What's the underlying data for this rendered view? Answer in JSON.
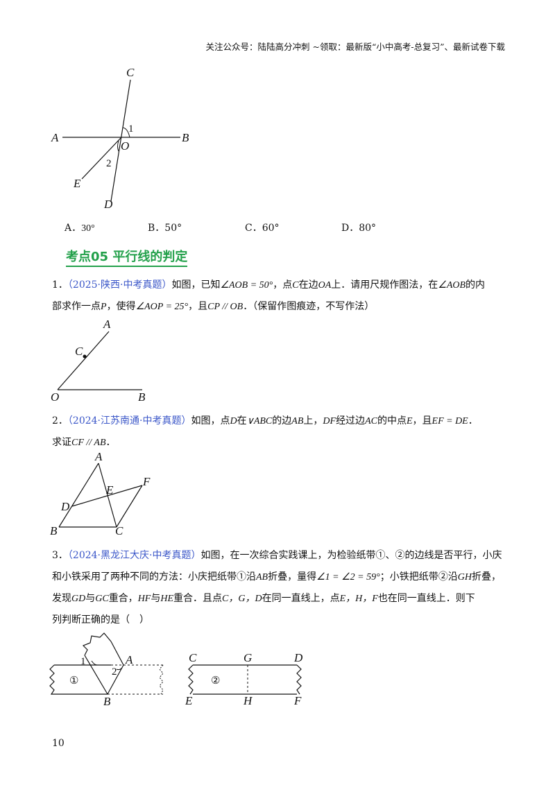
{
  "header": "关注公众号：陆陆高分冲刺  ~领取：最新版“小中高考-总复习”、最新试卷下载",
  "figure1": {
    "labels": {
      "C": "C",
      "A": "A",
      "O": "O",
      "B": "B",
      "E": "E",
      "D": "D",
      "one": "1",
      "two": "2"
    }
  },
  "options": [
    {
      "letter": "A．",
      "value": "30°"
    },
    {
      "letter": "B．",
      "value": "50°"
    },
    {
      "letter": "C．",
      "value": "60°"
    },
    {
      "letter": "D．",
      "value": "80°"
    }
  ],
  "section_title": "考点05  平行线的判定",
  "q1": {
    "num": "1．",
    "source": "（2025·陕西·中考真题）",
    "line1_a": "如图，已知",
    "line1_m1": "∠AOB = 50°",
    "line1_b": "，点",
    "line1_m2": "C",
    "line1_c": "在边",
    "line1_m3": "OA",
    "line1_d": "上．请用尺规作图法，在",
    "line1_m4": "∠AOB",
    "line1_e": "的内",
    "line2_a": "部求作一点",
    "line2_m1": "P",
    "line2_b": "，使得",
    "line2_m2": "∠AOP = 25°",
    "line2_c": "，且",
    "line2_m3": "CP // OB",
    "line2_d": "．（保留作图痕迹，不写作法）",
    "figure_labels": {
      "A": "A",
      "C": "C",
      "O": "O",
      "B": "B"
    }
  },
  "q2": {
    "num": "2．",
    "source": "（2024·江苏南通·中考真题）",
    "line1_a": "如图，点",
    "line1_m1": "D",
    "line1_b": "在",
    "line1_m2": "∨ABC",
    "line1_c": "的边",
    "line1_m3": "AB",
    "line1_d": "上，",
    "line1_m4": "DF",
    "line1_e": "经过边",
    "line1_m5": "AC",
    "line1_f": "的中点",
    "line1_m6": "E",
    "line1_g": "，且",
    "line1_m7": "EF = DE",
    "line1_h": "．",
    "line2_a": "求证",
    "line2_m1": "CF // AB",
    "line2_b": "．",
    "figure_labels": {
      "A": "A",
      "E": "E",
      "F": "F",
      "D": "D",
      "B": "B",
      "C": "C"
    }
  },
  "q3": {
    "num": "3．",
    "source": "（2024·黑龙江大庆·中考真题）",
    "line1": "如图，在一次综合实践课上，为检验纸带①、②的边线是否平行，小庆",
    "line2_a": "和小铁采用了两种不同的方法：小庆把纸带①沿",
    "line2_m1": "AB",
    "line2_b": "折叠，量得",
    "line2_m2": "∠1 = ∠2 = 59°",
    "line2_c": "；小铁把纸带②沿",
    "line2_m3": "GH",
    "line2_d": "折叠，",
    "line3_a": "发现",
    "line3_m1": "GD",
    "line3_b": "与",
    "line3_m2": "GC",
    "line3_c": "重合，",
    "line3_m3": "HF",
    "line3_d": "与",
    "line3_m4": "HE",
    "line3_e": "重合．且点",
    "line3_m5": "C，G，D",
    "line3_f": "在同一直线上，点",
    "line3_m6": "E，H，F",
    "line3_g": "也在同一直线上．则下",
    "line4": "列判断正确的是（　）",
    "fig_left_labels": {
      "one": "1",
      "two": "2",
      "A": "A",
      "B": "B",
      "circ": "①"
    },
    "fig_right_labels": {
      "C": "C",
      "G": "G",
      "D": "D",
      "E": "E",
      "H": "H",
      "F": "F",
      "circ": "②"
    }
  },
  "page_number": "10"
}
